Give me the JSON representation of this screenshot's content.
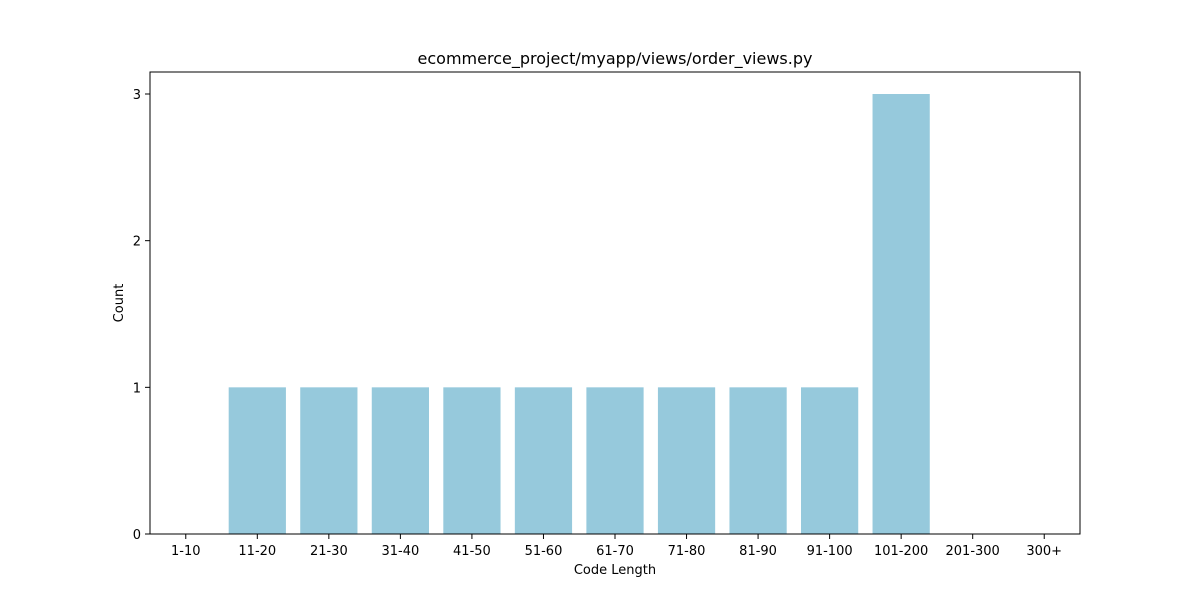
{
  "chart_data": {
    "type": "bar",
    "title": "ecommerce_project/myapp/views/order_views.py",
    "xlabel": "Code Length",
    "ylabel": "Count",
    "categories": [
      "1-10",
      "11-20",
      "21-30",
      "31-40",
      "41-50",
      "51-60",
      "61-70",
      "71-80",
      "81-90",
      "91-100",
      "101-200",
      "201-300",
      "300+"
    ],
    "values": [
      0,
      1,
      1,
      1,
      1,
      1,
      1,
      1,
      1,
      1,
      3,
      0,
      0
    ],
    "ylim": [
      0,
      3.15
    ],
    "yticks": [
      0,
      1,
      2,
      3
    ],
    "bar_color": "#96c9dc",
    "grid": false,
    "legend": "none"
  }
}
